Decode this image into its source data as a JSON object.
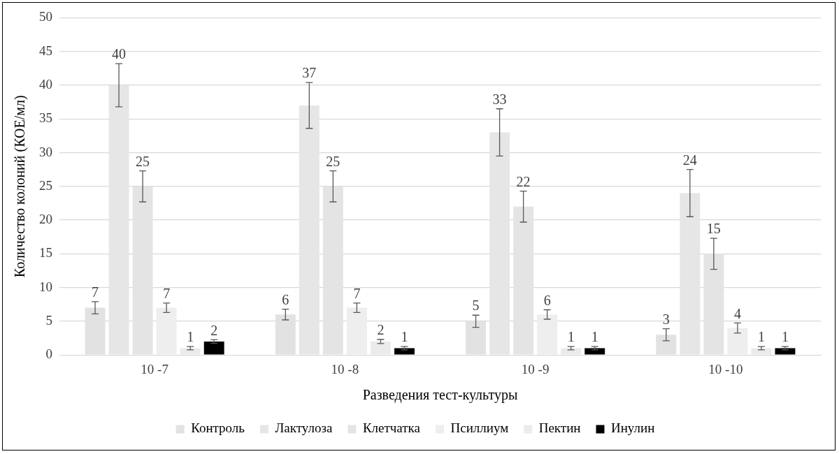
{
  "chart_data": {
    "type": "bar",
    "xlabel": "Разведения тест-культуры",
    "ylabel": "Количество колоний (КОЕ/мл)",
    "categories": [
      "10 -7",
      "10 -8",
      "10 -9",
      "10 -10"
    ],
    "series": [
      {
        "name": "Контроль",
        "color": "#e2e2e2",
        "values": [
          7,
          6,
          5,
          3
        ],
        "errors": [
          0.9,
          0.8,
          0.9,
          0.9
        ]
      },
      {
        "name": "Лактулоза",
        "color": "#e6e6e6",
        "values": [
          40,
          37,
          33,
          24
        ],
        "errors": [
          3.2,
          3.4,
          3.5,
          3.5
        ]
      },
      {
        "name": "Клетчатка",
        "color": "#e4e4e4",
        "values": [
          25,
          25,
          22,
          15
        ],
        "errors": [
          2.3,
          2.3,
          2.3,
          2.3
        ]
      },
      {
        "name": "Псиллиум",
        "color": "#eeeeee",
        "values": [
          7,
          7,
          6,
          4
        ],
        "errors": [
          0.7,
          0.7,
          0.7,
          0.75
        ]
      },
      {
        "name": "Пектин",
        "color": "#ebebeb",
        "values": [
          1,
          2,
          1,
          1
        ],
        "errors": [
          0.25,
          0.3,
          0.25,
          0.25
        ]
      },
      {
        "name": "Инулин",
        "color": "#000000",
        "values": [
          2,
          1,
          1,
          1
        ],
        "errors": [
          0.25,
          0.25,
          0.25,
          0.25
        ]
      }
    ],
    "ylim": [
      0,
      50
    ],
    "yticks": [
      0,
      5,
      10,
      15,
      20,
      25,
      30,
      35,
      40,
      45,
      50
    ],
    "grid": "y",
    "legend": "bottom",
    "data_labels": true
  }
}
